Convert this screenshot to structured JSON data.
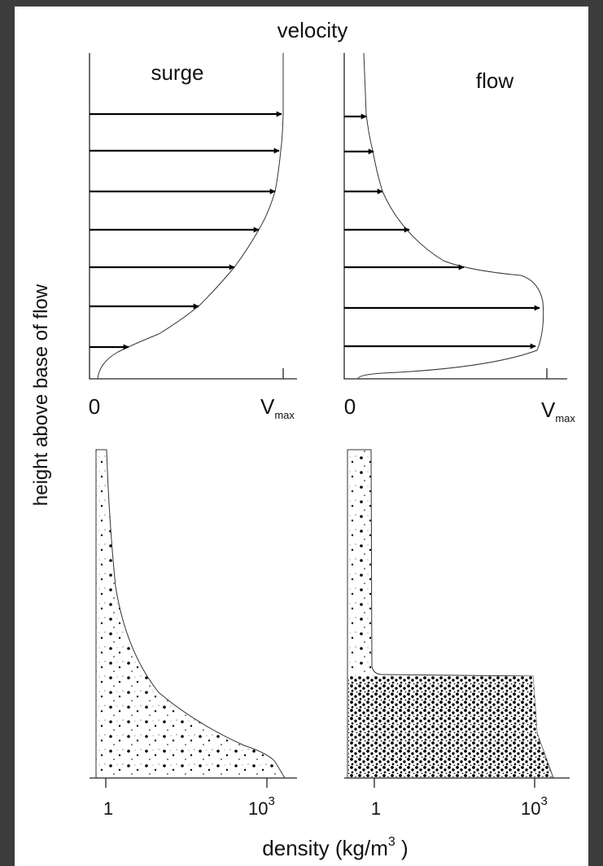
{
  "top_axis_label": "velocity",
  "y_axis_label": "height above base of flow",
  "bottom_axis_label": {
    "text": "density (kg/m",
    "sup": "3",
    "end": " )"
  },
  "velocity_panels": [
    {
      "label": "surge",
      "ticks": [
        {
          "text": "0"
        },
        {
          "text": "V",
          "sub": "max"
        }
      ]
    },
    {
      "label": "flow",
      "ticks": [
        {
          "text": "0"
        },
        {
          "text": "V",
          "sub": "max"
        }
      ]
    }
  ],
  "density_panels": [
    {
      "ticks": [
        {
          "text": "1"
        },
        {
          "text": "10",
          "sup": "3"
        }
      ]
    },
    {
      "ticks": [
        {
          "text": "1"
        },
        {
          "text": "10",
          "sup": "3"
        }
      ]
    }
  ]
}
